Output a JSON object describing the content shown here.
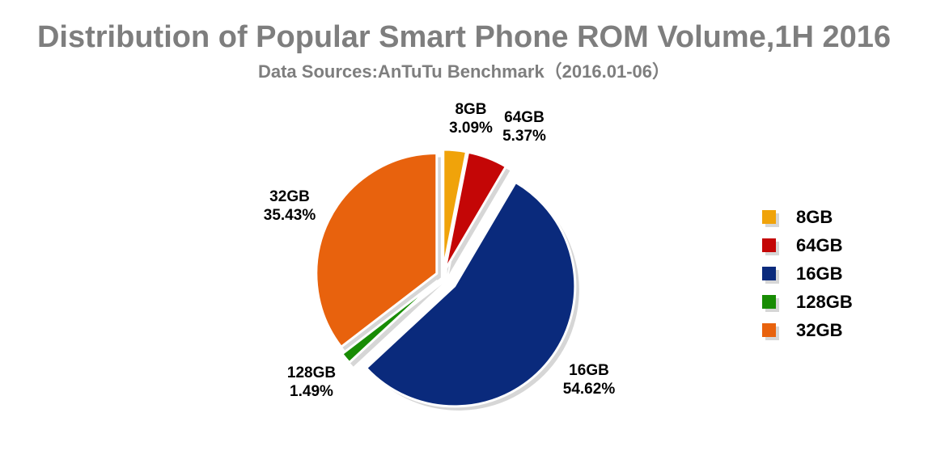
{
  "chart_data": {
    "type": "pie",
    "title": "Distribution of Popular Smart Phone ROM Volume,1H 2016",
    "subtitle": "Data Sources:AnTuTu Benchmark（2016.01-06）",
    "direction": "clockwise",
    "start_angle_deg": 0,
    "exploded": true,
    "most_exploded_slice": "16GB",
    "legend_position": "right",
    "label_format": "{name} {value}%",
    "slices": [
      {
        "label": "8GB",
        "value": 3.09,
        "pct_label": "3.09%",
        "color": "#f0a30a"
      },
      {
        "label": "64GB",
        "value": 5.37,
        "pct_label": "5.37%",
        "color": "#c40606"
      },
      {
        "label": "16GB",
        "value": 54.62,
        "pct_label": "54.62%",
        "color": "#0a2a7c"
      },
      {
        "label": "128GB",
        "value": 1.49,
        "pct_label": "1.49%",
        "color": "#188c04"
      },
      {
        "label": "32GB",
        "value": 35.43,
        "pct_label": "35.43%",
        "color": "#e8620d"
      }
    ],
    "legend": [
      "8GB",
      "64GB",
      "16GB",
      "128GB",
      "32GB"
    ]
  },
  "colors": {
    "background": "#ffffff",
    "title_text": "#7e7e7e",
    "label_text": "#000000",
    "slice_shadow": "#d6d6d6",
    "slice_outline": "#ffffff"
  }
}
